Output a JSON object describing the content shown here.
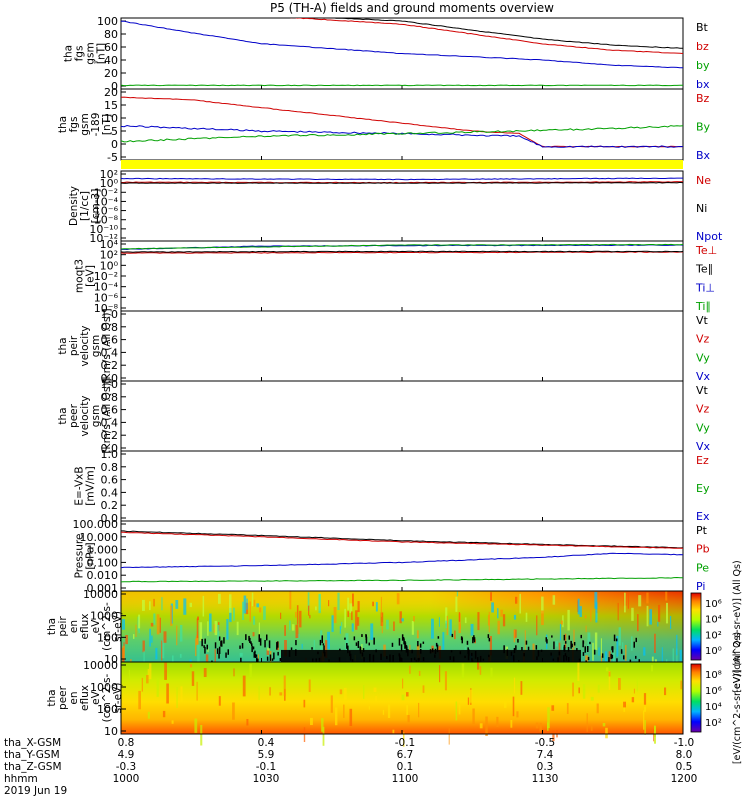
{
  "title": "P5 (TH-A) fields and ground moments overview",
  "chart_data": [
    {
      "type": "line",
      "panel": "fgs_gsm",
      "ylabel": [
        "tha",
        "fgs",
        "gsm",
        "[nT]"
      ],
      "yticks": [
        "100",
        "80",
        "60",
        "40",
        "20",
        "0"
      ],
      "ylim": [
        0,
        100
      ],
      "legend": [
        {
          "label": "Bt",
          "color": "#000000"
        },
        {
          "label": "bz",
          "color": "#d00000"
        },
        {
          "label": "by",
          "color": "#00a000"
        },
        {
          "label": "bx",
          "color": "#0000c8"
        }
      ],
      "series": [
        {
          "name": "Bt",
          "x": [
            1000,
            1030,
            1100,
            1130,
            1145,
            1200
          ],
          "y": [
            135,
            110,
            100,
            72,
            63,
            58
          ]
        },
        {
          "name": "bz",
          "x": [
            1000,
            1030,
            1100,
            1130,
            1145,
            1200
          ],
          "y": [
            133,
            108,
            95,
            65,
            55,
            50
          ]
        },
        {
          "name": "bx",
          "x": [
            1000,
            1015,
            1030,
            1100,
            1130,
            1145,
            1200
          ],
          "y": [
            100,
            82,
            65,
            50,
            40,
            32,
            28
          ]
        },
        {
          "name": "by",
          "x": [
            1000,
            1100,
            1200
          ],
          "y": [
            1,
            1,
            1
          ]
        }
      ]
    },
    {
      "type": "line",
      "panel": "fgs_gsm_zoom",
      "ylabel": [
        "tha",
        "fgs",
        "gsm",
        "-189",
        "[nT]"
      ],
      "yticks": [
        "20",
        "15",
        "10",
        "5",
        "0",
        "-5"
      ],
      "ylim": [
        -5,
        20
      ],
      "legend": [
        {
          "label": "Bz",
          "color": "#d00000"
        },
        {
          "label": "By",
          "color": "#00a000"
        },
        {
          "label": "Bx",
          "color": "#0000c8"
        }
      ],
      "series": [
        {
          "name": "Bz",
          "x": [
            1000,
            1015,
            1030,
            1100,
            1115,
            1125,
            1130,
            1145,
            1200
          ],
          "y": [
            18,
            17,
            14,
            8,
            5,
            4,
            -1,
            -1,
            -1
          ]
        },
        {
          "name": "Bx",
          "x": [
            1000,
            1015,
            1030,
            1100,
            1125,
            1130,
            1145,
            1200
          ],
          "y": [
            7,
            6,
            5,
            4,
            3,
            -1,
            -1,
            -1
          ]
        },
        {
          "name": "By",
          "x": [
            1000,
            1015,
            1030,
            1100,
            1125,
            1145,
            1200
          ],
          "y": [
            1,
            2,
            3,
            4,
            5,
            6,
            7
          ]
        }
      ]
    },
    {
      "type": "line",
      "panel": "density",
      "ylabel": [
        "Density",
        "[1/cc]",
        "[cm-3]"
      ],
      "yticks": [
        "10²",
        "10⁰",
        "10⁻²",
        "10⁻⁴",
        "10⁻⁶",
        "10⁻⁸",
        "10⁻¹⁰",
        "10⁻¹²"
      ],
      "ylim_log": [
        -12,
        2
      ],
      "legend": [
        {
          "label": "Ne",
          "color": "#d00000"
        },
        {
          "label": "Ni",
          "color": "#000000"
        },
        {
          "label": "Npot",
          "color": "#0000c8"
        }
      ],
      "series": [
        {
          "name": "Ne",
          "x": [
            1000,
            1100,
            1200
          ],
          "y_log": [
            0.2,
            0.1,
            0.3
          ]
        },
        {
          "name": "Ni",
          "x": [
            1000,
            1100,
            1200
          ],
          "y_log": [
            0.0,
            0.0,
            0.1
          ]
        },
        {
          "name": "Npot",
          "x": [
            1000,
            1100,
            1200
          ],
          "y_log": [
            1.0,
            0.8,
            1.1
          ]
        }
      ]
    },
    {
      "type": "line",
      "panel": "temperature",
      "ylabel": [
        "moqt3",
        "[eV]"
      ],
      "yticks": [
        "10⁴",
        "10²",
        "10⁰",
        "10⁻²",
        "10⁻⁴",
        "10⁻⁶",
        "10⁻⁸"
      ],
      "ylim_log": [
        -8,
        4
      ],
      "legend": [
        {
          "label": "Te⊥",
          "color": "#d00000"
        },
        {
          "label": "Te∥",
          "color": "#000000"
        },
        {
          "label": "Ti⊥",
          "color": "#0000c8"
        },
        {
          "label": "Ti∥",
          "color": "#00a000"
        }
      ],
      "series": [
        {
          "name": "Te⊥",
          "x": [
            1000,
            1100,
            1200
          ],
          "y_log": [
            2.3,
            2.4,
            2.5
          ]
        },
        {
          "name": "Te∥",
          "x": [
            1000,
            1100,
            1200
          ],
          "y_log": [
            2.5,
            2.6,
            2.6
          ]
        },
        {
          "name": "Ti⊥",
          "x": [
            1000,
            1030,
            1100,
            1200
          ],
          "y_log": [
            3.0,
            3.6,
            3.7,
            3.8
          ]
        },
        {
          "name": "Ti∥",
          "x": [
            1000,
            1100,
            1200
          ],
          "y_log": [
            3.1,
            3.8,
            3.9
          ]
        }
      ]
    },
    {
      "type": "line",
      "panel": "peir_velocity",
      "ylabel": [
        "tha",
        "peir",
        "velocity",
        "gsm",
        "[km/s (All Qs)]"
      ],
      "yticks": [
        "1.0",
        "0.8",
        "0.6",
        "0.4",
        "0.2",
        "0.0"
      ],
      "ylim": [
        0,
        1
      ],
      "legend": [
        {
          "label": "Vt",
          "color": "#000000"
        },
        {
          "label": "Vz",
          "color": "#d00000"
        },
        {
          "label": "Vy",
          "color": "#00a000"
        },
        {
          "label": "Vx",
          "color": "#0000c8"
        }
      ],
      "series": []
    },
    {
      "type": "line",
      "panel": "peer_velocity",
      "ylabel": [
        "tha",
        "peer",
        "velocity",
        "gsm",
        "[km/s (All Qs)]"
      ],
      "yticks": [
        "1.0",
        "0.8",
        "0.6",
        "0.4",
        "0.2",
        "0.0"
      ],
      "ylim": [
        0,
        1
      ],
      "legend": [
        {
          "label": "Vt",
          "color": "#000000"
        },
        {
          "label": "Vz",
          "color": "#d00000"
        },
        {
          "label": "Vy",
          "color": "#00a000"
        },
        {
          "label": "Vx",
          "color": "#0000c8"
        }
      ],
      "series": []
    },
    {
      "type": "line",
      "panel": "efield",
      "ylabel": [
        "E=-VxB",
        "[mV/m]"
      ],
      "yticks": [
        "1.0",
        "0.8",
        "0.6",
        "0.4",
        "0.2",
        "0.0"
      ],
      "ylim": [
        0,
        1
      ],
      "legend": [
        {
          "label": "Ez",
          "color": "#d00000"
        },
        {
          "label": "Ey",
          "color": "#00a000"
        },
        {
          "label": "Ex",
          "color": "#0000c8"
        }
      ],
      "series": []
    },
    {
      "type": "line",
      "panel": "pressure",
      "ylabel": [
        "Pressure",
        "[nPa]"
      ],
      "yticks": [
        "100.000",
        "10.000",
        "1.000",
        "0.100",
        "0.010",
        "0.001"
      ],
      "ylim_log": [
        -3,
        2
      ],
      "legend": [
        {
          "label": "Pt",
          "color": "#000000"
        },
        {
          "label": "Pb",
          "color": "#d00000"
        },
        {
          "label": "Pe",
          "color": "#00a000"
        },
        {
          "label": "Pi",
          "color": "#0000c8"
        }
      ],
      "series": [
        {
          "name": "Pt",
          "x": [
            1000,
            1030,
            1100,
            1130,
            1200
          ],
          "y_log": [
            1.45,
            1.1,
            0.7,
            0.4,
            0.15
          ]
        },
        {
          "name": "Pb",
          "x": [
            1000,
            1030,
            1100,
            1130,
            1200
          ],
          "y_log": [
            1.35,
            1.0,
            0.6,
            0.35,
            0.1
          ]
        },
        {
          "name": "Pi",
          "x": [
            1000,
            1030,
            1100,
            1130,
            1145,
            1200
          ],
          "y_log": [
            -1.4,
            -1.25,
            -1.0,
            -0.6,
            -0.3,
            -0.4
          ]
        },
        {
          "name": "Pe",
          "x": [
            1000,
            1100,
            1200
          ],
          "y_log": [
            -2.5,
            -2.4,
            -2.2
          ]
        }
      ]
    },
    {
      "type": "heatmap",
      "panel": "peir_en_eflux",
      "ylabel": [
        "tha",
        "peir",
        "en",
        "eflux",
        "eV",
        "(cm^2-s-",
        "sr-eV)"
      ],
      "yticks": [
        "10000",
        "1000",
        "100",
        "10"
      ],
      "ylim_log": [
        0.8,
        4.2
      ],
      "colorbar": {
        "ticks": [
          "10⁶",
          "10⁴",
          "10²",
          "10⁰"
        ],
        "label": "[eV/(cm^2-s-sr-eV)] (All Qs)"
      }
    },
    {
      "type": "heatmap",
      "panel": "peer_en_eflux",
      "ylabel": [
        "tha",
        "peer",
        "en",
        "eflux",
        "eV",
        "(cm^2-s-",
        "sr-eV)"
      ],
      "yticks": [
        "10000",
        "1000",
        "100",
        "10"
      ],
      "ylim_log": [
        0.8,
        4.2
      ],
      "colorbar": {
        "ticks": [
          "10⁸",
          "10⁶",
          "10⁴",
          "10²"
        ],
        "label": "[eV/(cm^2-s-sr-eV)] (All Qs)"
      }
    }
  ],
  "xaxis": {
    "rows": [
      {
        "label": "tha_X-GSM",
        "values": [
          "0.8",
          "0.4",
          "-0.1",
          "-0.5",
          "-1.0"
        ]
      },
      {
        "label": "tha_Y-GSM",
        "values": [
          "4.9",
          "5.9",
          "6.7",
          "7.4",
          "8.0"
        ]
      },
      {
        "label": "tha_Z-GSM",
        "values": [
          "-0.3",
          "-0.1",
          "0.1",
          "0.3",
          "0.5"
        ]
      },
      {
        "label": "hhmm",
        "values": [
          "1000",
          "1030",
          "1100",
          "1130",
          "1200"
        ]
      }
    ],
    "date": "2019 Jun 19"
  },
  "status_bar": {
    "color": "#ffff00"
  },
  "colors": {
    "red": "#d00000",
    "green": "#00a000",
    "blue": "#0000c8",
    "black": "#000000"
  }
}
